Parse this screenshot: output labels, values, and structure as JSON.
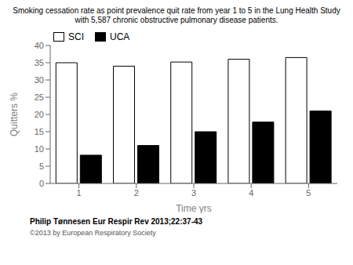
{
  "chart_data": {
    "type": "bar",
    "title": "Smoking cessation rate as point prevalence quit rate from year 1 to 5 in the Lung Health Study",
    "subtitle": "with 5,587 chronic obstructive pulmonary disease patients.",
    "categories": [
      "1",
      "2",
      "3",
      "4",
      "5"
    ],
    "series": [
      {
        "name": "SCI",
        "color": "white",
        "values": [
          35.0,
          34.0,
          35.2,
          36.0,
          36.5
        ]
      },
      {
        "name": "UCA",
        "color": "black",
        "values": [
          8.2,
          11.0,
          15.0,
          17.8,
          21.0
        ]
      }
    ],
    "x_label": "Time yrs",
    "y_label": "Quitters %",
    "ylim": [
      0,
      40
    ],
    "yticks": [
      0,
      5,
      10,
      15,
      20,
      25,
      30,
      35,
      40
    ],
    "grid": false,
    "legend": "upper left",
    "annotations": [
      "Philip Tønnesen Eur Respir Rev 2013;22:37-43",
      "©2013 by European Respiratory Society"
    ]
  }
}
